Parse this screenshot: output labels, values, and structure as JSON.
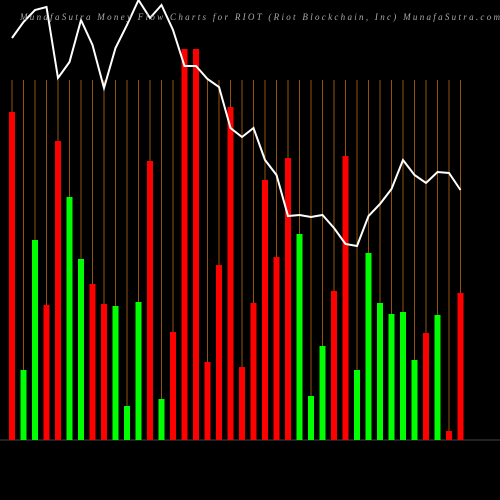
{
  "chart_data": {
    "type": "bar",
    "title": "MunafaSutra Money Flow Charts for RIOT (Riot Blockchain, Inc) MunafaSutra.com",
    "categories": [
      null,
      null,
      null,
      null,
      null,
      null,
      null,
      null,
      null,
      null,
      null,
      null,
      null,
      null,
      null,
      null,
      null,
      null,
      null,
      null,
      null,
      null,
      null,
      null,
      null,
      null,
      null,
      null,
      null,
      null,
      null,
      null,
      null,
      null,
      null,
      null,
      null,
      null,
      null,
      null
    ],
    "values": [
      328,
      70,
      200,
      135,
      299,
      243,
      181,
      156,
      136,
      134,
      34,
      138,
      279,
      41,
      108,
      391,
      391,
      78,
      175,
      333,
      73,
      137,
      260,
      183,
      282,
      206,
      44,
      94,
      149,
      284,
      70,
      187,
      137,
      126,
      128,
      80,
      107,
      125,
      9,
      147
    ],
    "colors": [
      "#ff0000",
      "#00ff00",
      "#00ff00",
      "#ff0000",
      "#ff0000",
      "#00ff00",
      "#00ff00",
      "#ff0000",
      "#ff0000",
      "#00ff00",
      "#00ff00",
      "#00ff00",
      "#ff0000",
      "#00ff00",
      "#ff0000",
      "#ff0000",
      "#ff0000",
      "#ff0000",
      "#ff0000",
      "#ff0000",
      "#ff0000",
      "#ff0000",
      "#ff0000",
      "#ff0000",
      "#ff0000",
      "#00ff00",
      "#00ff00",
      "#00ff00",
      "#ff0000",
      "#ff0000",
      "#00ff00",
      "#00ff00",
      "#00ff00",
      "#00ff00",
      "#00ff00",
      "#00ff00",
      "#ff0000",
      "#00ff00",
      "#ff0000",
      "#ff0000"
    ],
    "line_values": [
      402,
      418,
      430,
      433,
      362,
      378,
      420,
      395,
      352,
      392,
      415,
      440,
      422,
      435,
      410,
      374,
      374,
      361,
      353,
      312,
      303,
      312,
      280,
      265,
      224,
      225,
      223,
      225,
      212,
      196,
      194,
      224,
      236,
      251,
      280,
      265,
      257,
      268,
      267,
      250
    ],
    "line_color": "#ffffff",
    "ylim": [
      0,
      440
    ],
    "grid": true,
    "grid_color": "#b86a10"
  }
}
